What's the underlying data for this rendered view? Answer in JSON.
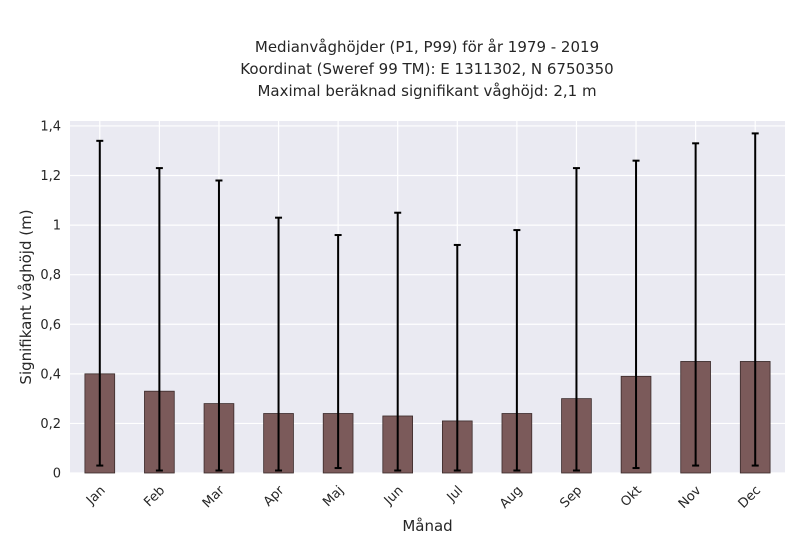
{
  "chart_data": {
    "type": "bar",
    "title_lines": [
      "Medianvåghöjder (P1, P99) för år 1979 - 2019",
      "Koordinat (Sweref 99 TM): E 1311302, N 6750350",
      "Maximal beräknad signifikant våghöjd: 2,1 m"
    ],
    "xlabel": "Månad",
    "ylabel": "Signifikant våghöjd (m)",
    "categories": [
      "Jan",
      "Feb",
      "Mar",
      "Apr",
      "Maj",
      "Jun",
      "Jul",
      "Aug",
      "Sep",
      "Okt",
      "Nov",
      "Dec"
    ],
    "values": [
      0.4,
      0.33,
      0.28,
      0.24,
      0.24,
      0.23,
      0.21,
      0.24,
      0.3,
      0.39,
      0.45,
      0.45
    ],
    "p1": [
      0.03,
      0.01,
      0.01,
      0.01,
      0.02,
      0.01,
      0.01,
      0.01,
      0.01,
      0.02,
      0.03,
      0.03
    ],
    "p99": [
      1.34,
      1.23,
      1.18,
      1.03,
      0.96,
      1.05,
      0.92,
      0.98,
      1.23,
      1.26,
      1.33,
      1.37
    ],
    "ylim": [
      0,
      1.42
    ],
    "yticks": [
      0,
      0.2,
      0.4,
      0.6,
      0.8,
      1,
      1.2,
      1.4
    ],
    "ytick_labels": [
      "0",
      "0,2",
      "0,4",
      "0,6",
      "0,8",
      "1",
      "1,2",
      "1,4"
    ],
    "grid": true,
    "colors": {
      "bar": "#7b5a5a",
      "bar_edge": "#3a2a2a",
      "background": "#eaeaf2",
      "grid": "#ffffff",
      "errorbar": "#000000"
    }
  }
}
